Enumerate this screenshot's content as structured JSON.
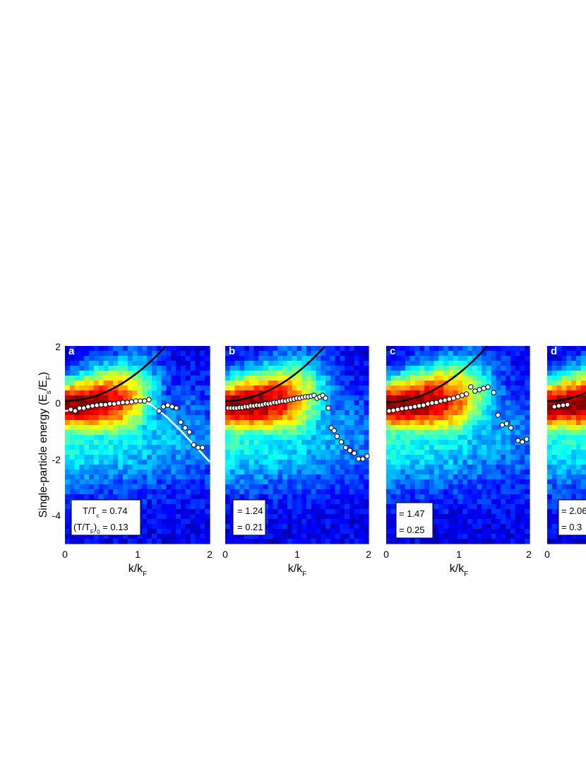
{
  "figure": {
    "ylabel_main": "Single-particle energy (E",
    "ylabel_sub": "s",
    "ylabel_mid": "/E",
    "ylabel_sub2": "F",
    "ylabel_end": ")",
    "xlabel_main": "k/k",
    "xlabel_sub": "F"
  },
  "panels": [
    {
      "letter": "a",
      "label_line1": {
        "prefix": "T/T",
        "sub": "c",
        "suffix": " = 0.74"
      },
      "label_line2": {
        "prefix": "(T/T",
        "sub": "F",
        "mid": ")",
        "sub2": "0",
        "suffix": " = 0.13"
      }
    },
    {
      "letter": "b",
      "label_line1": {
        "suffix": "= 1.24"
      },
      "label_line2": {
        "suffix": "= 0.21"
      }
    },
    {
      "letter": "c",
      "label_line1": {
        "suffix": "= 1.47"
      },
      "label_line2": {
        "suffix": "= 0.25"
      }
    },
    {
      "letter": "d",
      "label_line1": {
        "suffix": "= 2.06"
      },
      "label_line2": {
        "suffix": "= 0.3"
      }
    }
  ],
  "chart_data": {
    "type": "heatmap",
    "x_ticks": [
      "0",
      "1",
      "2"
    ],
    "y_ticks": [
      "2",
      "0",
      "-2",
      "-4"
    ],
    "xlim": [
      0,
      2
    ],
    "ylim": [
      -5,
      2
    ],
    "colormap": "jet",
    "series": [
      {
        "panel": "a",
        "peak_points": {
          "x": [
            0.08,
            0.14,
            0.2,
            0.26,
            0.32,
            0.38,
            0.44,
            0.5,
            0.56,
            0.62,
            0.68,
            0.74,
            0.8,
            0.86,
            0.92,
            0.98,
            1.04,
            1.1,
            1.16,
            1.3,
            1.36,
            1.42,
            1.48,
            1.54,
            1.6,
            1.66,
            1.72,
            1.78,
            1.84,
            1.9
          ],
          "y": [
            -0.25,
            -0.3,
            -0.2,
            -0.2,
            -0.15,
            -0.12,
            -0.1,
            -0.08,
            -0.08,
            -0.05,
            -0.05,
            -0.02,
            0.0,
            0.0,
            0.02,
            0.05,
            0.05,
            0.05,
            0.1,
            -0.3,
            -0.15,
            -0.1,
            -0.15,
            -0.2,
            -0.7,
            -0.9,
            -1.05,
            -1.5,
            -1.6,
            -1.6
          ]
        },
        "white_fit": {
          "x": [
            0.0,
            0.2,
            0.4,
            0.6,
            0.8,
            1.0,
            1.1,
            1.2,
            1.4,
            1.6,
            1.8,
            2.0
          ],
          "y": [
            -0.3,
            -0.25,
            -0.12,
            -0.05,
            0.0,
            0.03,
            0.02,
            -0.1,
            -0.5,
            -1.0,
            -1.55,
            -2.1
          ]
        },
        "free_dispersion": {
          "type": "parabola",
          "offset": 0.05,
          "coeff": 1.0
        }
      },
      {
        "panel": "b",
        "peak_points": {
          "x": [
            0.04,
            0.08,
            0.12,
            0.16,
            0.2,
            0.24,
            0.28,
            0.32,
            0.36,
            0.4,
            0.44,
            0.48,
            0.52,
            0.56,
            0.6,
            0.64,
            0.68,
            0.72,
            0.76,
            0.8,
            0.84,
            0.88,
            0.92,
            0.96,
            1.0,
            1.04,
            1.08,
            1.12,
            1.16,
            1.2,
            1.24,
            1.28,
            1.32,
            1.36,
            1.4,
            1.44,
            1.48,
            1.52,
            1.56,
            1.62,
            1.68,
            1.74,
            1.8,
            1.86,
            1.92,
            1.98
          ],
          "y": [
            -0.2,
            -0.2,
            -0.2,
            -0.2,
            -0.18,
            -0.18,
            -0.15,
            -0.15,
            -0.12,
            -0.12,
            -0.1,
            -0.1,
            -0.08,
            -0.05,
            -0.05,
            -0.03,
            0.0,
            0.0,
            0.03,
            0.05,
            0.05,
            0.08,
            0.1,
            0.12,
            0.15,
            0.15,
            0.18,
            0.2,
            0.2,
            0.22,
            0.25,
            0.15,
            0.2,
            0.25,
            0.15,
            -0.2,
            -0.9,
            -1.0,
            -1.2,
            -1.4,
            -1.6,
            -1.7,
            -1.8,
            -2.0,
            -2.0,
            -1.9
          ]
        },
        "free_dispersion": {
          "type": "parabola",
          "offset": 0.05,
          "coeff": 1.0
        }
      },
      {
        "panel": "c",
        "peak_points": {
          "x": [
            0.04,
            0.1,
            0.16,
            0.22,
            0.28,
            0.34,
            0.4,
            0.46,
            0.52,
            0.58,
            0.64,
            0.7,
            0.76,
            0.82,
            0.88,
            0.94,
            1.0,
            1.06,
            1.12,
            1.18,
            1.24,
            1.3,
            1.36,
            1.42,
            1.5,
            1.56,
            1.62,
            1.68,
            1.74,
            1.84,
            1.9,
            1.96
          ],
          "y": [
            -0.3,
            -0.28,
            -0.25,
            -0.22,
            -0.2,
            -0.18,
            -0.15,
            -0.12,
            -0.1,
            -0.05,
            -0.02,
            0.0,
            0.05,
            0.08,
            0.12,
            0.15,
            0.2,
            0.25,
            0.3,
            0.55,
            0.4,
            0.45,
            0.5,
            0.55,
            0.35,
            -0.45,
            -0.8,
            -0.75,
            -0.9,
            -1.35,
            -1.4,
            -1.3
          ]
        },
        "free_dispersion": {
          "type": "parabola",
          "offset": 0.0,
          "coeff": 1.0
        }
      },
      {
        "panel": "d",
        "peak_points": {
          "x": [
            0.1,
            0.16,
            0.22,
            0.28
          ],
          "y": [
            -0.15,
            -0.12,
            -0.1,
            -0.08
          ]
        },
        "free_dispersion": {
          "type": "parabola",
          "offset": 0.05,
          "coeff": 1.0
        }
      }
    ]
  }
}
